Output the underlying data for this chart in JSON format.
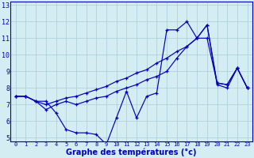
{
  "xlabel": "Graphe des températures (°c)",
  "background_color": "#d4edf2",
  "line_color": "#0000bb",
  "grid_color": "#a8ccd8",
  "xlim": [
    -0.5,
    23.5
  ],
  "ylim": [
    4.8,
    13.2
  ],
  "yticks": [
    5,
    6,
    7,
    8,
    9,
    10,
    11,
    12,
    13
  ],
  "xticks": [
    0,
    1,
    2,
    3,
    4,
    5,
    6,
    7,
    8,
    9,
    10,
    11,
    12,
    13,
    14,
    15,
    16,
    17,
    18,
    19,
    20,
    21,
    22,
    23
  ],
  "line_zigzag": [
    7.5,
    7.5,
    7.2,
    7.2,
    6.5,
    5.5,
    5.3,
    5.3,
    5.2,
    4.6,
    6.2,
    7.8,
    6.2,
    7.5,
    7.7,
    11.5,
    11.5,
    12.0,
    11.0,
    11.8,
    8.2,
    8.0,
    9.2,
    8.0
  ],
  "line_smooth1": [
    7.5,
    7.5,
    7.2,
    7.0,
    7.2,
    7.4,
    7.5,
    7.7,
    7.9,
    8.1,
    8.4,
    8.6,
    8.9,
    9.1,
    9.5,
    9.8,
    10.2,
    10.5,
    11.0,
    11.0,
    8.3,
    8.2,
    9.2,
    8.0
  ],
  "line_smooth2": [
    7.5,
    7.5,
    7.2,
    6.7,
    7.0,
    7.2,
    7.0,
    7.2,
    7.4,
    7.5,
    7.8,
    8.0,
    8.2,
    8.5,
    8.7,
    9.0,
    9.8,
    10.5,
    11.0,
    11.8,
    8.3,
    8.2,
    9.2,
    8.0
  ]
}
